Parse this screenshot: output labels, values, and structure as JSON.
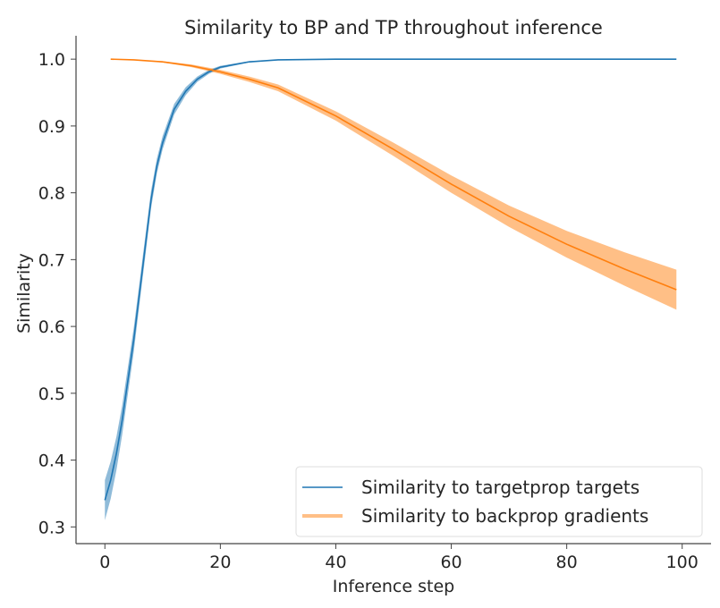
{
  "chart_data": {
    "type": "line",
    "title": "Similarity to BP and TP throughout inference",
    "xlabel": "Inference step",
    "ylabel": "Similarity",
    "xlim": [
      -5,
      105
    ],
    "ylim": [
      0.275,
      1.035
    ],
    "xticks": [
      0,
      20,
      40,
      60,
      80,
      100
    ],
    "yticks": [
      0.3,
      0.4,
      0.5,
      0.6,
      0.7,
      0.8,
      0.9,
      1.0
    ],
    "ytick_labels": [
      "0.3",
      "0.4",
      "0.5",
      "0.6",
      "0.7",
      "0.8",
      "0.9",
      "1.0"
    ],
    "grid": false,
    "legend_position": "lower-right",
    "series": [
      {
        "name": "Similarity to targetprop targets",
        "color": "#1f77b4",
        "x": [
          0,
          1,
          2,
          3,
          4,
          5,
          6,
          7,
          8,
          9,
          10,
          12,
          14,
          16,
          18,
          20,
          25,
          30,
          40,
          60,
          80,
          99
        ],
        "y": [
          0.34,
          0.37,
          0.41,
          0.46,
          0.52,
          0.58,
          0.65,
          0.72,
          0.79,
          0.84,
          0.875,
          0.925,
          0.952,
          0.97,
          0.981,
          0.988,
          0.996,
          0.999,
          1.0,
          1.0,
          1.0,
          1.0
        ],
        "band": [
          0.03,
          0.028,
          0.025,
          0.022,
          0.02,
          0.018,
          0.016,
          0.015,
          0.013,
          0.011,
          0.01,
          0.008,
          0.006,
          0.004,
          0.003,
          0.002,
          0.001,
          0,
          0,
          0,
          0,
          0
        ]
      },
      {
        "name": "Similarity to backprop gradients",
        "color": "#ff7f0e",
        "x": [
          1,
          5,
          10,
          15,
          20,
          25,
          30,
          40,
          50,
          60,
          70,
          80,
          90,
          99
        ],
        "y": [
          1.0,
          0.999,
          0.996,
          0.99,
          0.981,
          0.97,
          0.957,
          0.915,
          0.865,
          0.813,
          0.765,
          0.723,
          0.686,
          0.655
        ],
        "band": [
          0,
          0,
          0.001,
          0.002,
          0.003,
          0.004,
          0.005,
          0.007,
          0.01,
          0.013,
          0.016,
          0.02,
          0.025,
          0.03
        ]
      }
    ]
  }
}
